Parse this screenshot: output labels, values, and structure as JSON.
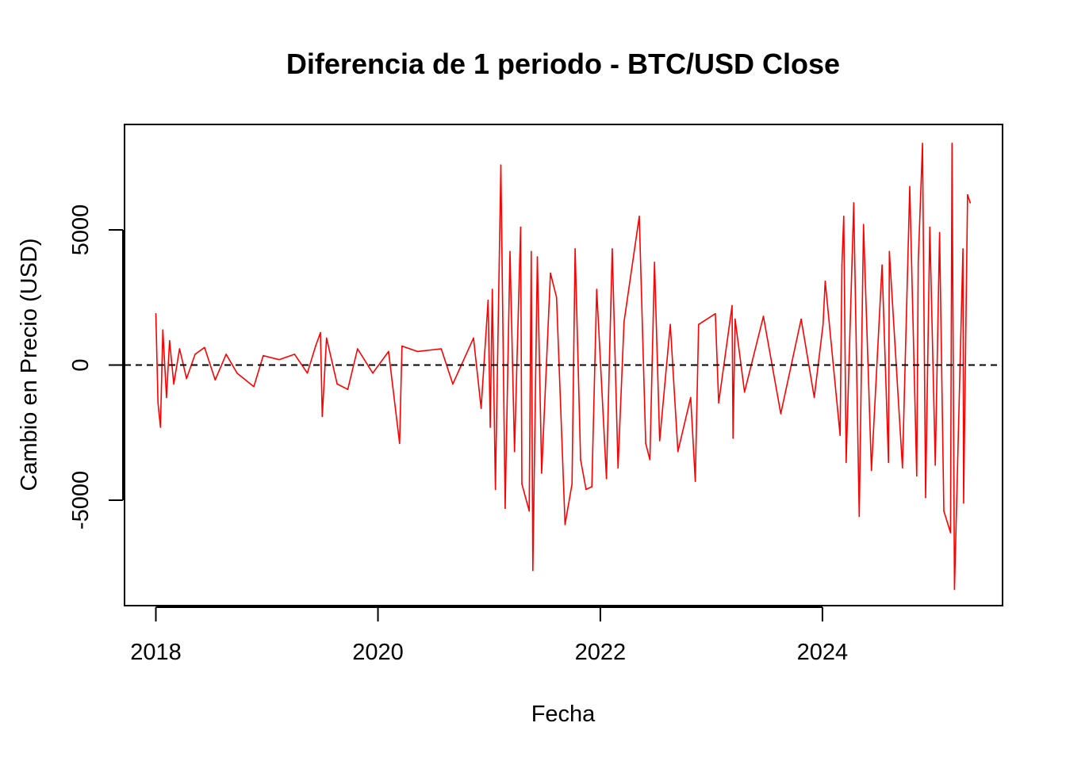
{
  "chart_data": {
    "type": "line",
    "title": "Diferencia de 1 periodo - BTC/USD Close",
    "xlabel": "Fecha",
    "ylabel": "Cambio en Precio (USD)",
    "x_ticks": [
      "2018",
      "2020",
      "2022",
      "2024"
    ],
    "y_ticks": [
      "-5000",
      "0",
      "5000"
    ],
    "xlim": [
      "2017-09-20",
      "2025-08-15"
    ],
    "ylim": [
      -8900,
      8900
    ],
    "grid": false,
    "legend": "none",
    "reference_line": {
      "y": 0,
      "style": "dashed",
      "color": "#000000"
    },
    "series": [
      {
        "color": "#ff0000",
        "x": [
          "2018-01-01",
          "2018-01-08",
          "2018-01-16",
          "2018-01-24",
          "2018-02-05",
          "2018-02-15",
          "2018-03-01",
          "2018-03-20",
          "2018-04-12",
          "2018-05-10",
          "2018-06-10",
          "2018-07-15",
          "2018-08-20",
          "2018-09-25",
          "2018-11-19",
          "2018-12-20",
          "2019-02-10",
          "2019-04-02",
          "2019-05-14",
          "2019-06-10",
          "2019-06-26",
          "2019-07-02",
          "2019-07-16",
          "2019-08-20",
          "2019-09-24",
          "2019-10-26",
          "2019-12-15",
          "2020-02-05",
          "2020-03-12",
          "2020-03-20",
          "2020-05-10",
          "2020-07-27",
          "2020-09-03",
          "2020-11-10",
          "2020-12-05",
          "2020-12-28",
          "2021-01-04",
          "2021-01-11",
          "2021-01-21",
          "2021-02-08",
          "2021-02-22",
          "2021-03-10",
          "2021-03-25",
          "2021-04-14",
          "2021-04-18",
          "2021-05-12",
          "2021-05-19",
          "2021-05-24",
          "2021-06-08",
          "2021-06-22",
          "2021-07-21",
          "2021-08-10",
          "2021-09-07",
          "2021-09-30",
          "2021-10-10",
          "2021-10-28",
          "2021-11-15",
          "2021-12-04",
          "2021-12-20",
          "2022-01-21",
          "2022-02-09",
          "2022-02-28",
          "2022-03-20",
          "2022-05-09",
          "2022-05-30",
          "2022-06-13",
          "2022-06-28",
          "2022-07-15",
          "2022-08-19",
          "2022-09-13",
          "2022-10-25",
          "2022-11-09",
          "2022-11-20",
          "2023-01-14",
          "2023-01-25",
          "2023-03-10",
          "2023-03-13",
          "2023-03-20",
          "2023-04-20",
          "2023-06-21",
          "2023-08-17",
          "2023-10-23",
          "2023-12-05",
          "2024-01-03",
          "2024-01-10",
          "2024-02-28",
          "2024-03-05",
          "2024-03-11",
          "2024-03-19",
          "2024-04-13",
          "2024-05-01",
          "2024-05-15",
          "2024-06-10",
          "2024-07-15",
          "2024-08-05",
          "2024-08-08",
          "2024-09-20",
          "2024-10-14",
          "2024-11-06",
          "2024-11-11",
          "2024-11-25",
          "2024-12-05",
          "2024-12-19",
          "2025-01-06",
          "2025-01-20",
          "2025-02-03",
          "2025-02-25",
          "2025-03-02",
          "2025-03-10",
          "2025-04-07",
          "2025-04-09",
          "2025-04-22",
          "2025-05-01"
        ],
        "values": [
          1900,
          -1400,
          -2300,
          1300,
          -1200,
          900,
          -700,
          600,
          -500,
          400,
          650,
          -550,
          400,
          -300,
          -800,
          350,
          200,
          400,
          -300,
          700,
          1200,
          -1900,
          1000,
          -700,
          -900,
          600,
          -300,
          500,
          -2900,
          700,
          500,
          600,
          -700,
          1000,
          -1600,
          2400,
          -2300,
          2800,
          -4600,
          7400,
          -5300,
          4200,
          -3200,
          5100,
          -4400,
          -5400,
          4200,
          -7600,
          4000,
          -4000,
          3400,
          2500,
          -5900,
          -4400,
          4300,
          -3500,
          -4600,
          -4500,
          2800,
          -4200,
          4300,
          -3800,
          1600,
          5500,
          -2900,
          -3500,
          3800,
          -2800,
          1500,
          -3200,
          -1200,
          -4300,
          1500,
          1900,
          -1400,
          2200,
          -2700,
          1700,
          -1000,
          1800,
          -1800,
          1700,
          -1200,
          1500,
          3100,
          -2600,
          3700,
          5500,
          -3600,
          6000,
          -5600,
          5200,
          -3900,
          3700,
          -3600,
          4200,
          -3800,
          6600,
          -4100,
          3800,
          8200,
          -4900,
          5100,
          -3700,
          4900,
          -5400,
          -6200,
          8200,
          -8300,
          4300,
          -5100,
          6300,
          6000
        ]
      }
    ]
  }
}
